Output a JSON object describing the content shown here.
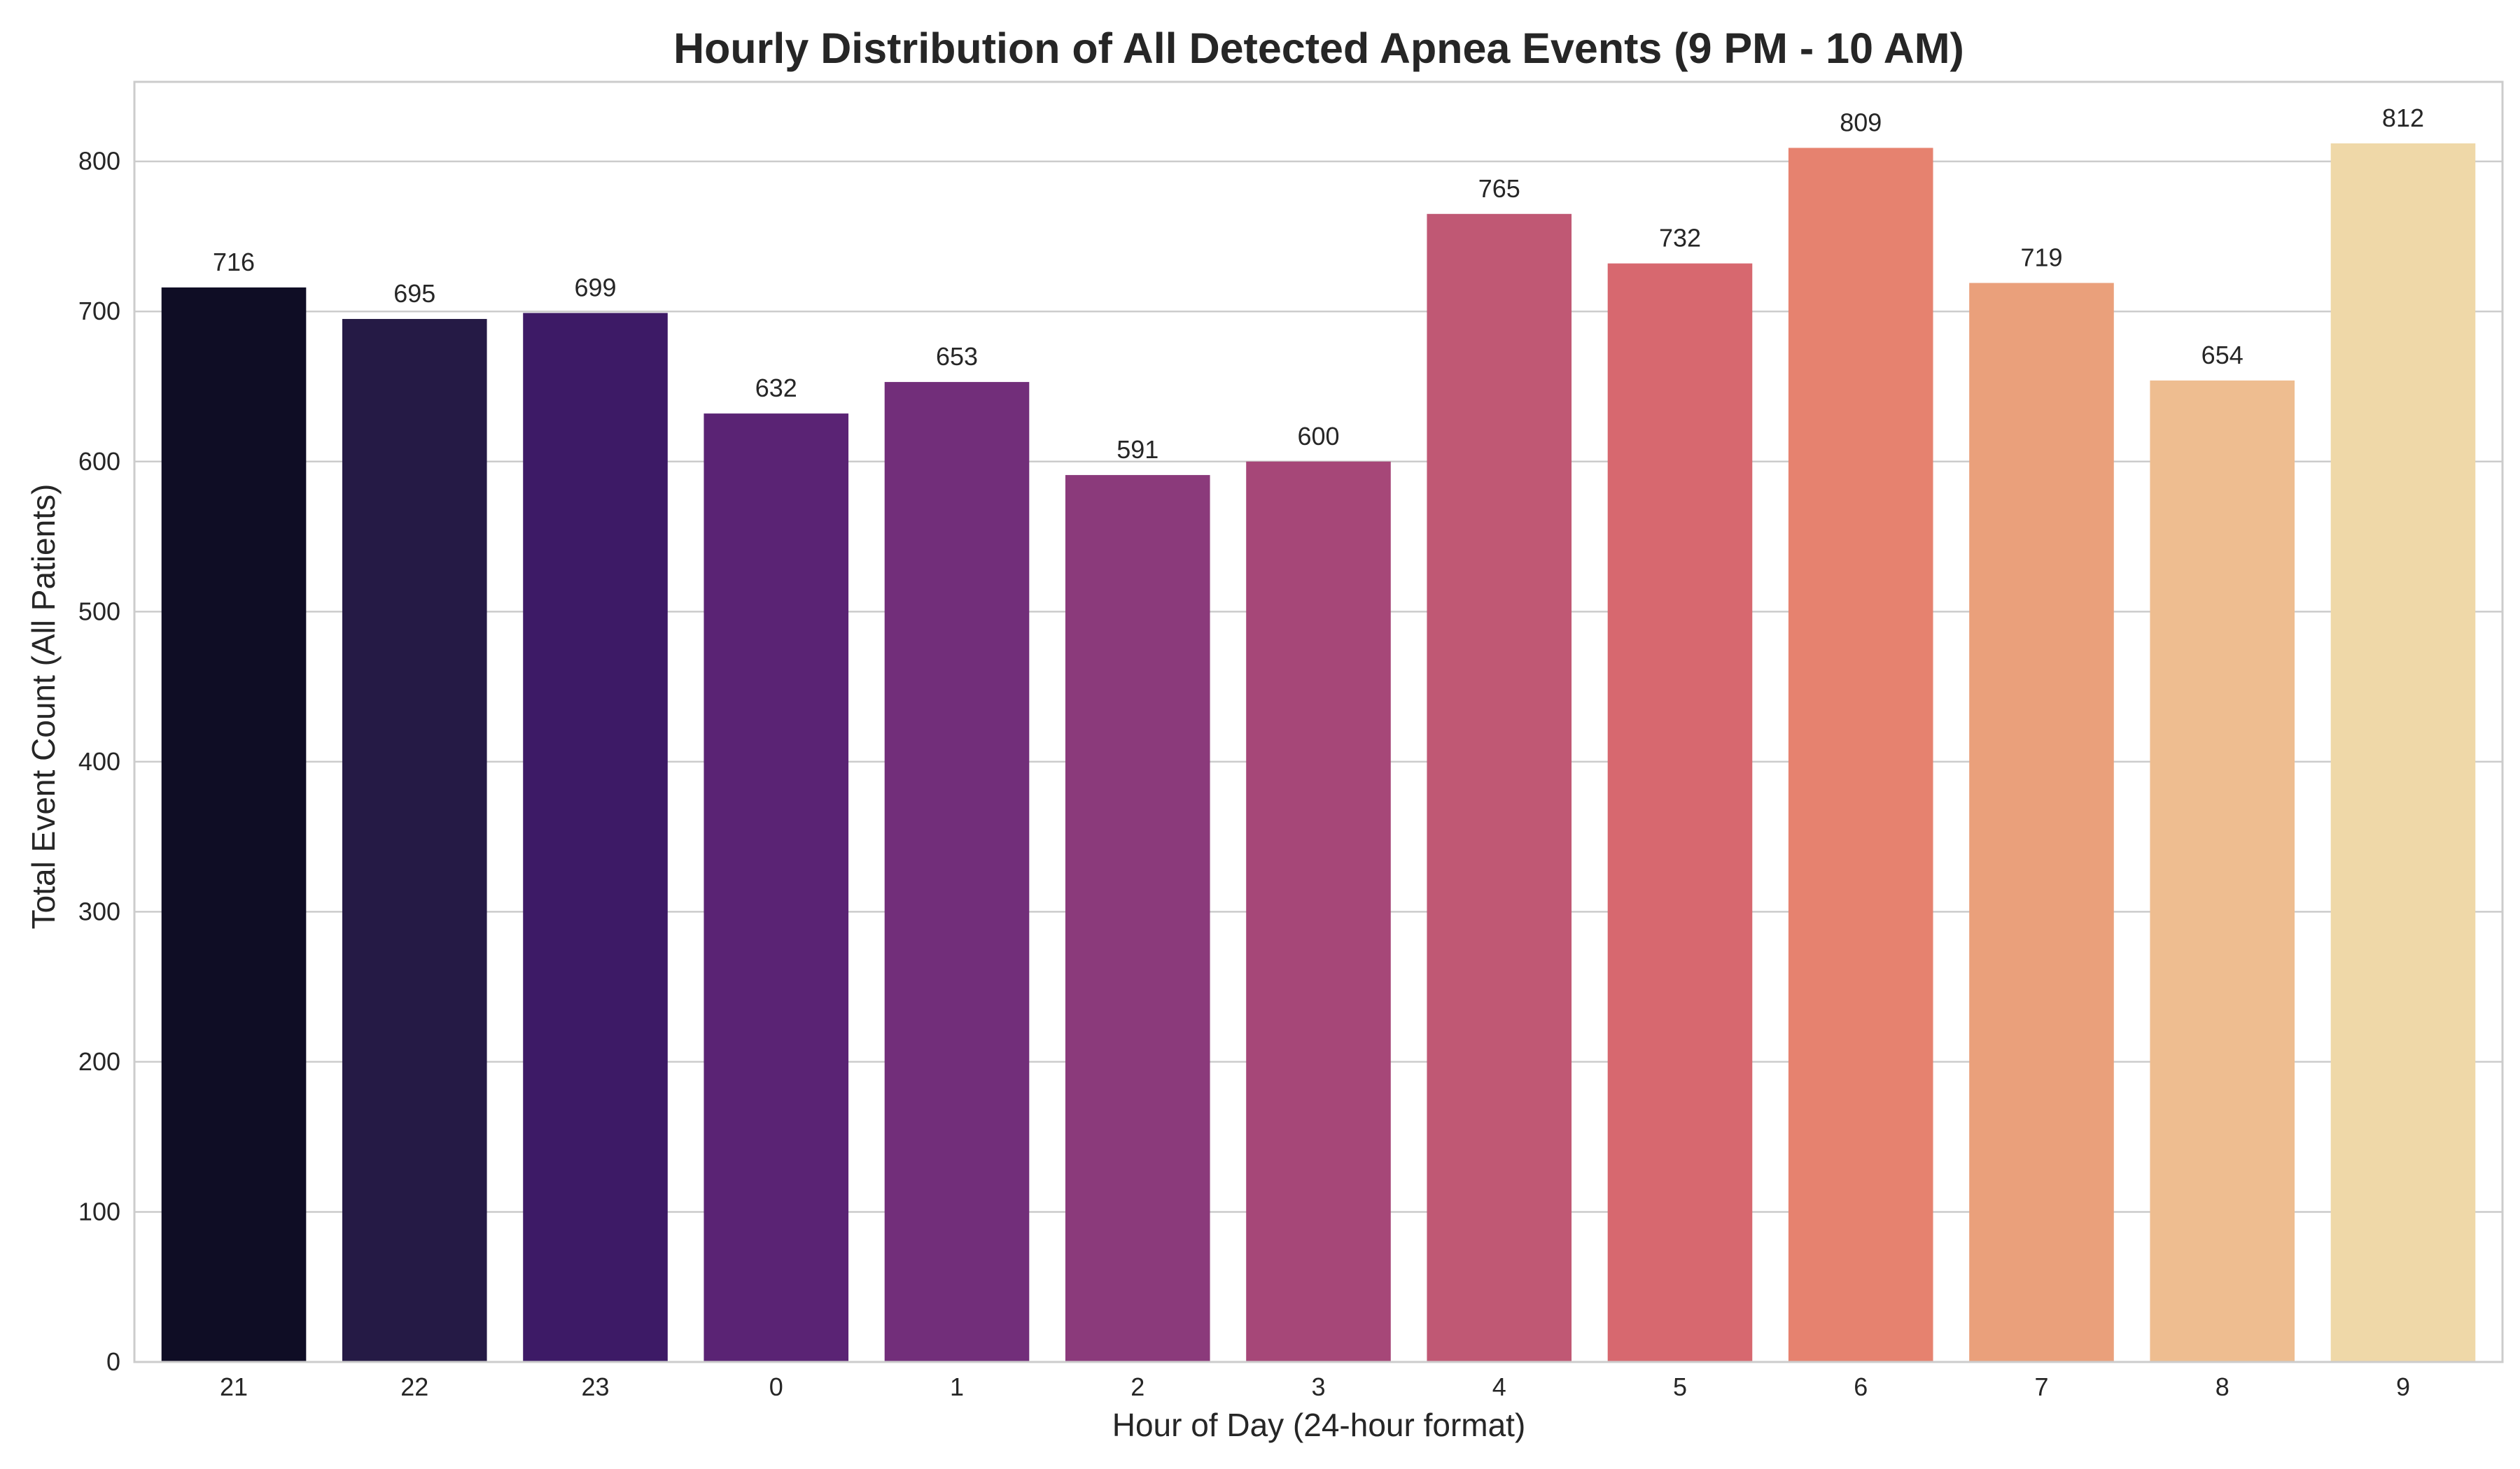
{
  "chart_data": {
    "type": "bar",
    "title": "Hourly Distribution of All Detected Apnea Events (9 PM - 10 AM)",
    "xlabel": "Hour of Day (24-hour format)",
    "ylabel": "Total Event Count (All Patients)",
    "categories": [
      "21",
      "22",
      "23",
      "0",
      "1",
      "2",
      "3",
      "4",
      "5",
      "6",
      "7",
      "8",
      "9"
    ],
    "values": [
      716,
      695,
      699,
      632,
      653,
      591,
      600,
      765,
      732,
      809,
      719,
      654,
      812
    ],
    "ylim": [
      0,
      853
    ],
    "yticks": [
      0,
      100,
      200,
      300,
      400,
      500,
      600,
      700,
      800
    ],
    "grid": "horizontal",
    "legend": "none",
    "colors": [
      "#0f0d25",
      "#251a45",
      "#3d1a66",
      "#5a2374",
      "#722e7a",
      "#8b3a7b",
      "#a64778",
      "#c05874",
      "#d7686f",
      "#e6826f",
      "#eaa07b",
      "#eebd90",
      "#efd8a8"
    ]
  }
}
